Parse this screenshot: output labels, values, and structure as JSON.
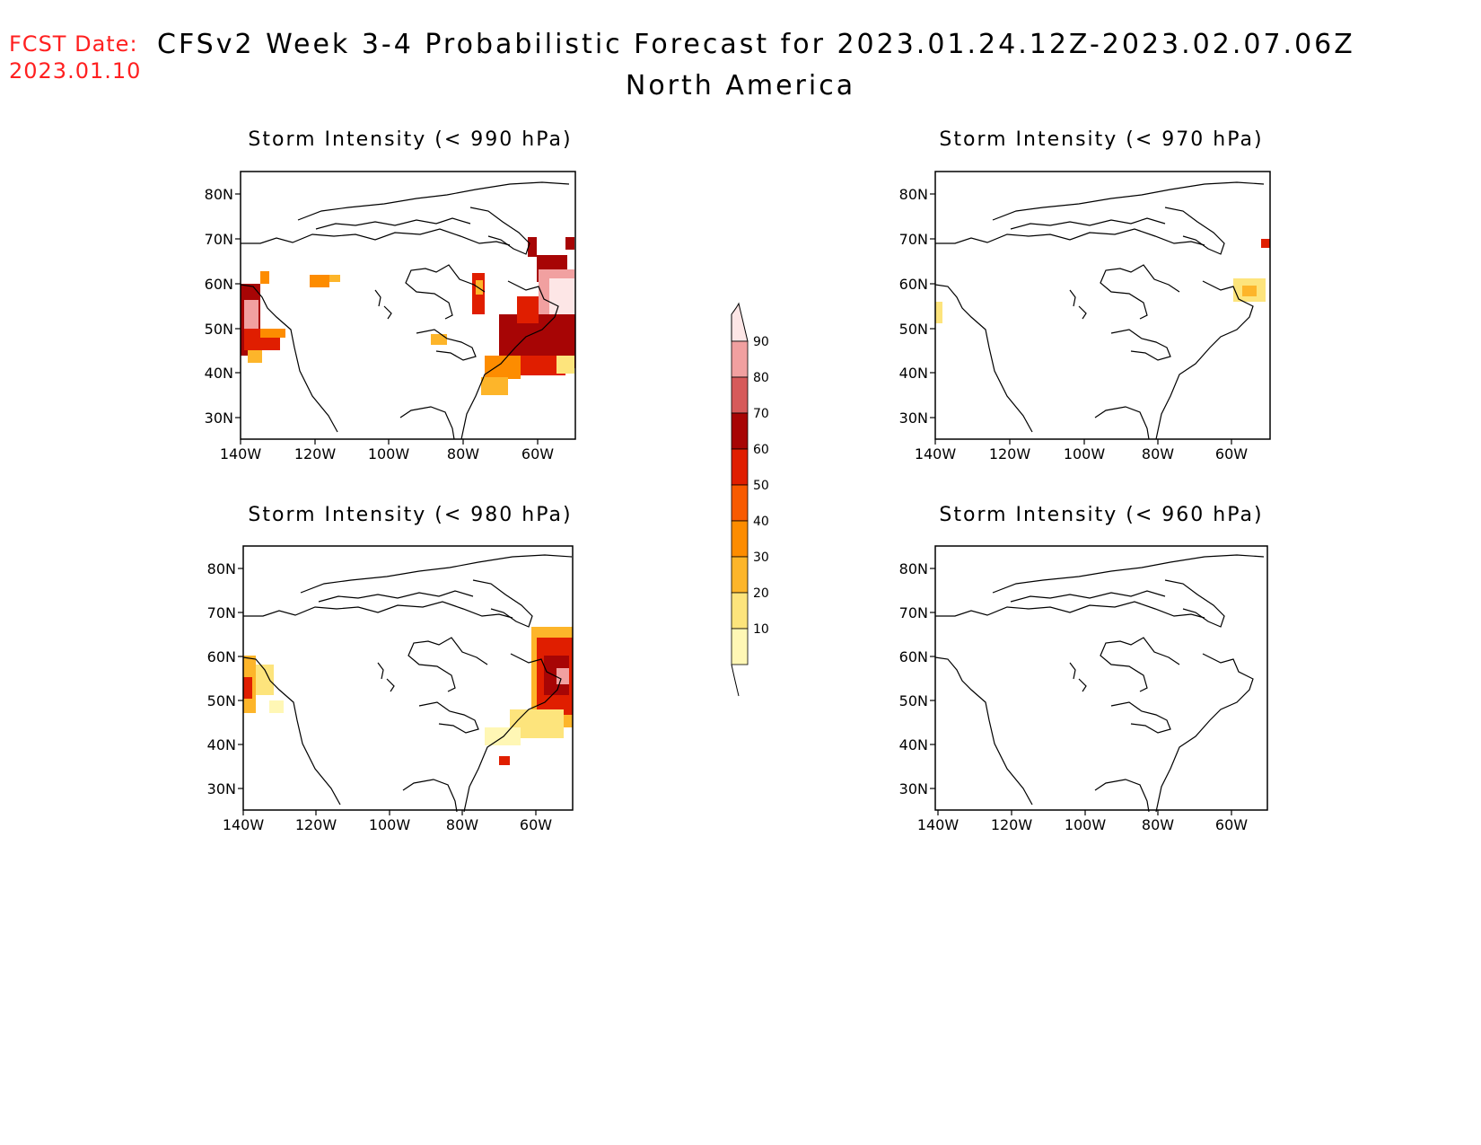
{
  "header": {
    "fcst_label": "FCST Date:",
    "fcst_date": "2023.01.10",
    "title": "CFSv2 Week 3-4 Probabilistic Forecast for 2023.01.24.12Z-2023.02.07.06Z",
    "region": "North America"
  },
  "lat_labels": [
    "80N",
    "70N",
    "60N",
    "50N",
    "40N",
    "30N"
  ],
  "lon_labels": [
    "140W",
    "120W",
    "100W",
    "80W",
    "60W"
  ],
  "panels": [
    {
      "title": "Storm Intensity (< 990 hPa)"
    },
    {
      "title": "Storm Intensity (< 970 hPa)"
    },
    {
      "title": "Storm Intensity (< 980 hPa)"
    },
    {
      "title": "Storm Intensity (< 960 hPa)"
    }
  ],
  "colorbar": {
    "levels": [
      "10",
      "20",
      "30",
      "40",
      "50",
      "60",
      "70",
      "80",
      "90"
    ],
    "colors": [
      "#fff7b5",
      "#fde47c",
      "#fdb52a",
      "#fd8c00",
      "#f85a00",
      "#e01e00",
      "#a70505",
      "#d65a5a",
      "#f1a0a0",
      "#fde6e6"
    ]
  }
}
